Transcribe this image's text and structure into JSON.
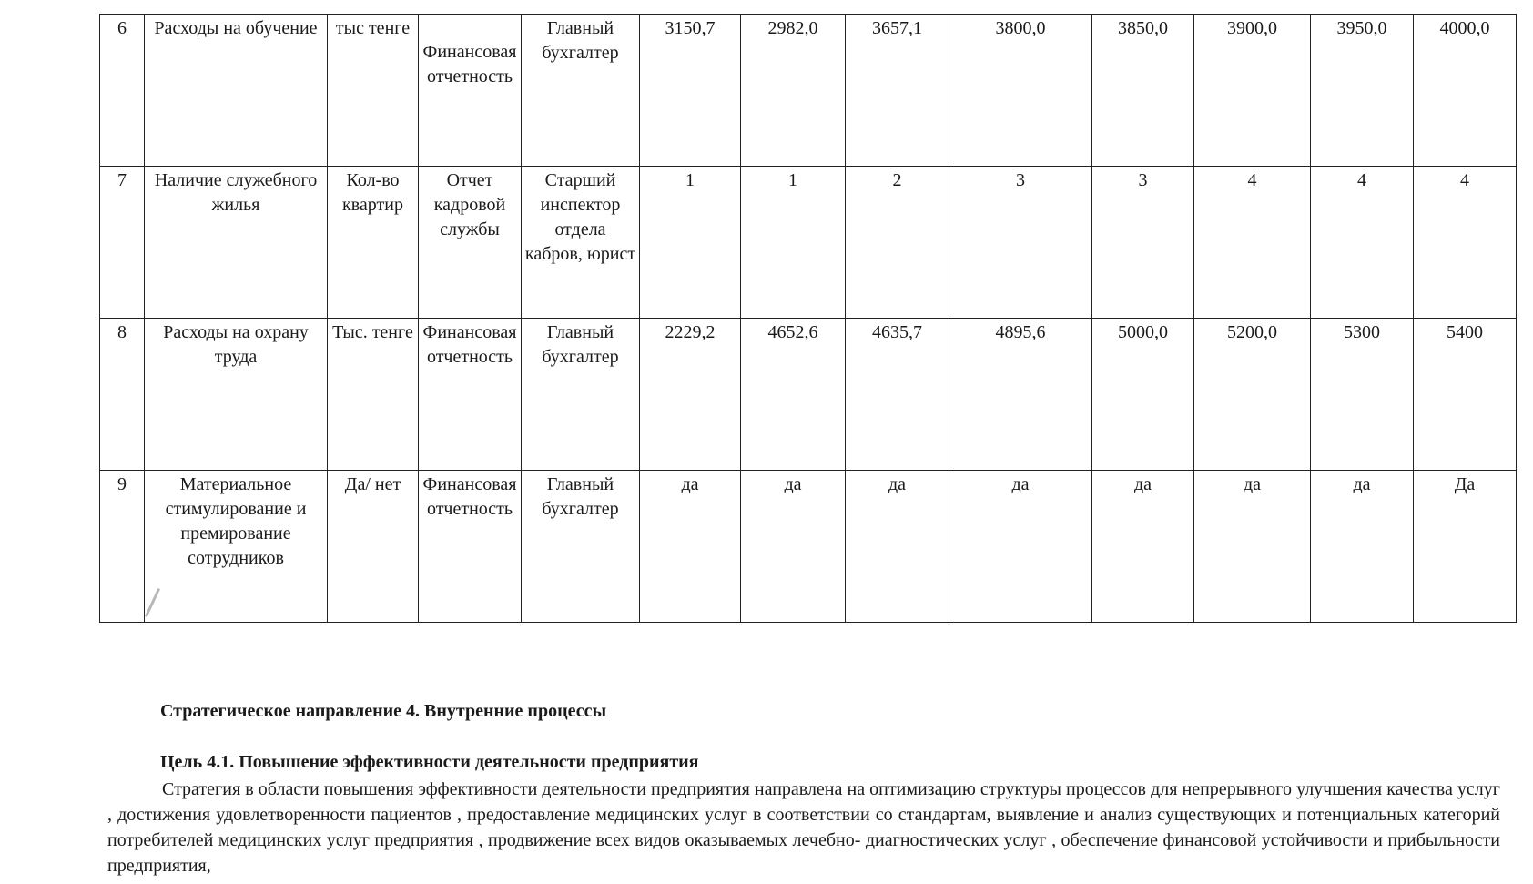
{
  "table": {
    "rows": [
      {
        "num": "6",
        "name": "Расходы на обучение",
        "unit": "тыс тенге",
        "source": "Финансовая отчетность",
        "resp": "Главный бухгалтер",
        "values": [
          "3150,7",
          "2982,0",
          "3657,1",
          "3800,0",
          "3850,0",
          "3900,0",
          "3950,0",
          "4000,0"
        ]
      },
      {
        "num": "7",
        "name": "Наличие служебного жилья",
        "unit": "Кол-во квартир",
        "source": "Отчет кадровой службы",
        "resp": "Старший инспектор отдела кабров, юрист",
        "values": [
          "1",
          "1",
          "2",
          "3",
          "3",
          "4",
          "4",
          "4"
        ]
      },
      {
        "num": "8",
        "name": "Расходы на охрану труда",
        "unit": "Тыс. тенге",
        "source": "Финансовая отчетность",
        "resp": "Главный бухгалтер",
        "values": [
          "2229,2",
          "4652,6",
          "4635,7",
          "4895,6",
          "5000,0",
          "5200,0",
          "5300",
          "5400"
        ]
      },
      {
        "num": "9",
        "name": "Материальное стимулирование и премирование сотрудников",
        "unit": "Да/ нет",
        "source": "Финансовая отчетность",
        "resp": "Главный бухгалтер",
        "values": [
          "да",
          "да",
          "да",
          "да",
          "да",
          "да",
          "да",
          "Да"
        ]
      }
    ]
  },
  "heading": "Стратегическое направление  4.   Внутренние процессы",
  "goal": "Цель  4.1.  Повышение  эффективности  деятельности  предприятия",
  "paragraph": "Стратегия в области   повышения эффективности деятельности предприятия  направлена  на оптимизацию  структуры процессов  для непрерывного улучшения качества  услуг , достижения  удовлетворенности пациентов  , предоставление  медицинских услуг  в соответствии со стандартам,  выявление  и анализ  существующих  и  потенциальных  категорий потребителей  медицинских услуг  предприятия  , продвижение всех видов оказываемых лечебно- диагностических услуг ,  обеспечение финансовой устойчивости и прибыльности предприятия,"
}
